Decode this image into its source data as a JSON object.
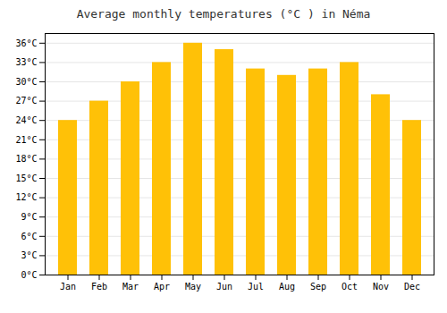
{
  "chart_data": {
    "type": "bar",
    "title": "Average monthly temperatures (°C ) in Néma",
    "categories": [
      "Jan",
      "Feb",
      "Mar",
      "Apr",
      "May",
      "Jun",
      "Jul",
      "Aug",
      "Sep",
      "Oct",
      "Nov",
      "Dec"
    ],
    "values": [
      24,
      27,
      30,
      33,
      36,
      35,
      32,
      31,
      32,
      33,
      28,
      24
    ],
    "color": "#FFC107",
    "ylim": [
      0,
      37.5
    ],
    "yticks": [
      {
        "value": 0,
        "label": "0°C"
      },
      {
        "value": 3,
        "label": "3°C"
      },
      {
        "value": 6,
        "label": "6°C"
      },
      {
        "value": 9,
        "label": "9°C"
      },
      {
        "value": 12,
        "label": "12°C"
      },
      {
        "value": 15,
        "label": "15°C"
      },
      {
        "value": 18,
        "label": "18°C"
      },
      {
        "value": 21,
        "label": "21°C"
      },
      {
        "value": 24,
        "label": "24°C"
      },
      {
        "value": 27,
        "label": "27°C"
      },
      {
        "value": 30,
        "label": "30°C"
      },
      {
        "value": 33,
        "label": "33°C"
      },
      {
        "value": 36,
        "label": "36°C"
      }
    ],
    "grid": true
  }
}
